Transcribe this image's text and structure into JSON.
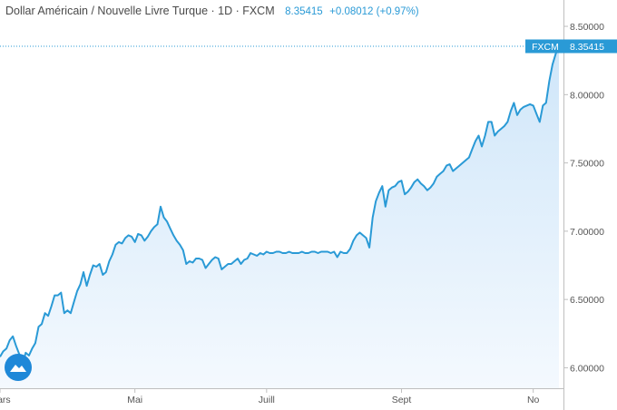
{
  "header": {
    "title": "Dollar Américain / Nouvelle Livre Turque · 1D · FXCM",
    "price": "8.35415",
    "change": "+0.08012 (+0.97%)"
  },
  "price_tag": {
    "label": "FXCM",
    "value": "8.35415"
  },
  "colors": {
    "line": "#2a9ad6",
    "fill_top": "#cfe6f9",
    "fill_bottom": "#f4f9fe",
    "tag_bg": "#2a9ad6",
    "axis": "#bfbfbf"
  },
  "logo_icon": "tradingview-logo-icon",
  "chart_data": {
    "type": "area",
    "xlabel": "",
    "ylabel": "",
    "ylim": [
      5.85,
      8.6
    ],
    "yticks": [
      6.0,
      6.5,
      7.0,
      7.5,
      8.0,
      8.5
    ],
    "ytick_labels": [
      "6.00000",
      "6.50000",
      "7.00000",
      "7.50000",
      "8.00000",
      "8.50000"
    ],
    "xticks": [
      "Mars",
      "Mai",
      "Juill",
      "Sept",
      "No"
    ],
    "xtick_positions": [
      0,
      42,
      83,
      125,
      166
    ],
    "last_value": 8.35415,
    "grid": false,
    "series": [
      {
        "values": [
          6.08,
          6.12,
          6.14,
          6.2,
          6.23,
          6.16,
          6.1,
          6.02,
          6.11,
          6.09,
          6.14,
          6.18,
          6.3,
          6.32,
          6.4,
          6.38,
          6.45,
          6.53,
          6.53,
          6.55,
          6.4,
          6.42,
          6.4,
          6.48,
          6.56,
          6.61,
          6.7,
          6.6,
          6.68,
          6.75,
          6.74,
          6.76,
          6.68,
          6.7,
          6.78,
          6.83,
          6.9,
          6.92,
          6.91,
          6.95,
          6.97,
          6.96,
          6.92,
          6.98,
          6.97,
          6.93,
          6.96,
          7.0,
          7.03,
          7.05,
          7.18,
          7.1,
          7.07,
          7.02,
          6.97,
          6.93,
          6.9,
          6.86,
          6.76,
          6.78,
          6.77,
          6.8,
          6.8,
          6.79,
          6.73,
          6.76,
          6.79,
          6.81,
          6.8,
          6.72,
          6.74,
          6.76,
          6.76,
          6.78,
          6.8,
          6.76,
          6.79,
          6.8,
          6.84,
          6.83,
          6.82,
          6.84,
          6.83,
          6.85,
          6.84,
          6.84,
          6.85,
          6.85,
          6.84,
          6.84,
          6.85,
          6.84,
          6.84,
          6.84,
          6.85,
          6.84,
          6.84,
          6.85,
          6.85,
          6.84,
          6.85,
          6.85,
          6.85,
          6.84,
          6.85,
          6.81,
          6.85,
          6.84,
          6.84,
          6.87,
          6.93,
          6.97,
          6.99,
          6.97,
          6.95,
          6.88,
          7.1,
          7.22,
          7.28,
          7.33,
          7.18,
          7.3,
          7.32,
          7.33,
          7.36,
          7.37,
          7.27,
          7.29,
          7.32,
          7.36,
          7.38,
          7.35,
          7.33,
          7.3,
          7.32,
          7.35,
          7.4,
          7.42,
          7.44,
          7.48,
          7.49,
          7.44,
          7.46,
          7.48,
          7.5,
          7.52,
          7.54,
          7.6,
          7.66,
          7.7,
          7.62,
          7.7,
          7.8,
          7.8,
          7.7,
          7.73,
          7.75,
          7.77,
          7.8,
          7.88,
          7.94,
          7.85,
          7.89,
          7.91,
          7.92,
          7.93,
          7.92,
          7.86,
          7.8,
          7.92,
          7.94,
          8.1,
          8.22,
          8.3,
          8.35415
        ]
      }
    ]
  }
}
